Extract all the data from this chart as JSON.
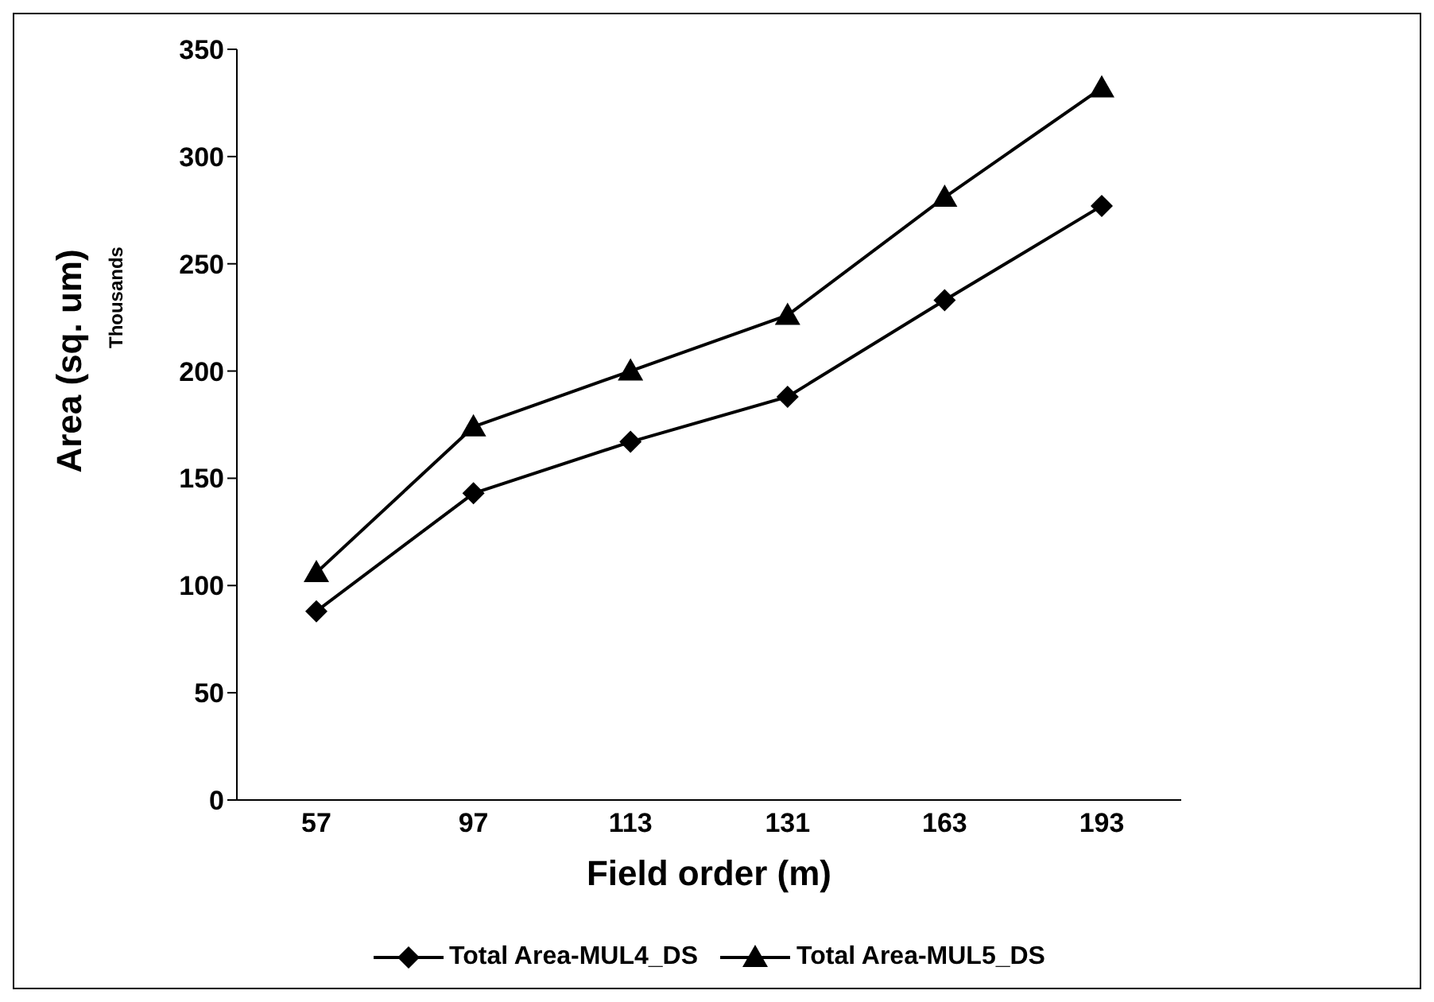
{
  "chart_data": {
    "type": "line",
    "xlabel": "Field order (m)",
    "ylabel": "Area (sq. um)",
    "annotations": [
      "Thousands"
    ],
    "categories": [
      "57",
      "97",
      "113",
      "131",
      "163",
      "193"
    ],
    "series": [
      {
        "name": "Total Area-MUL4_DS",
        "color": "#000000",
        "marker": "diamond",
        "values": [
          88,
          143,
          167,
          188,
          233,
          277
        ]
      },
      {
        "name": "Total Area-MUL5_DS",
        "color": "#000000",
        "marker": "triangle",
        "values": [
          106,
          174,
          200,
          226,
          281,
          332
        ]
      }
    ],
    "ylim": [
      0,
      350
    ],
    "yticks": [
      0,
      50,
      100,
      150,
      200,
      250,
      300,
      350
    ],
    "grid": false,
    "legend": "bottom",
    "line_style": "solid"
  }
}
